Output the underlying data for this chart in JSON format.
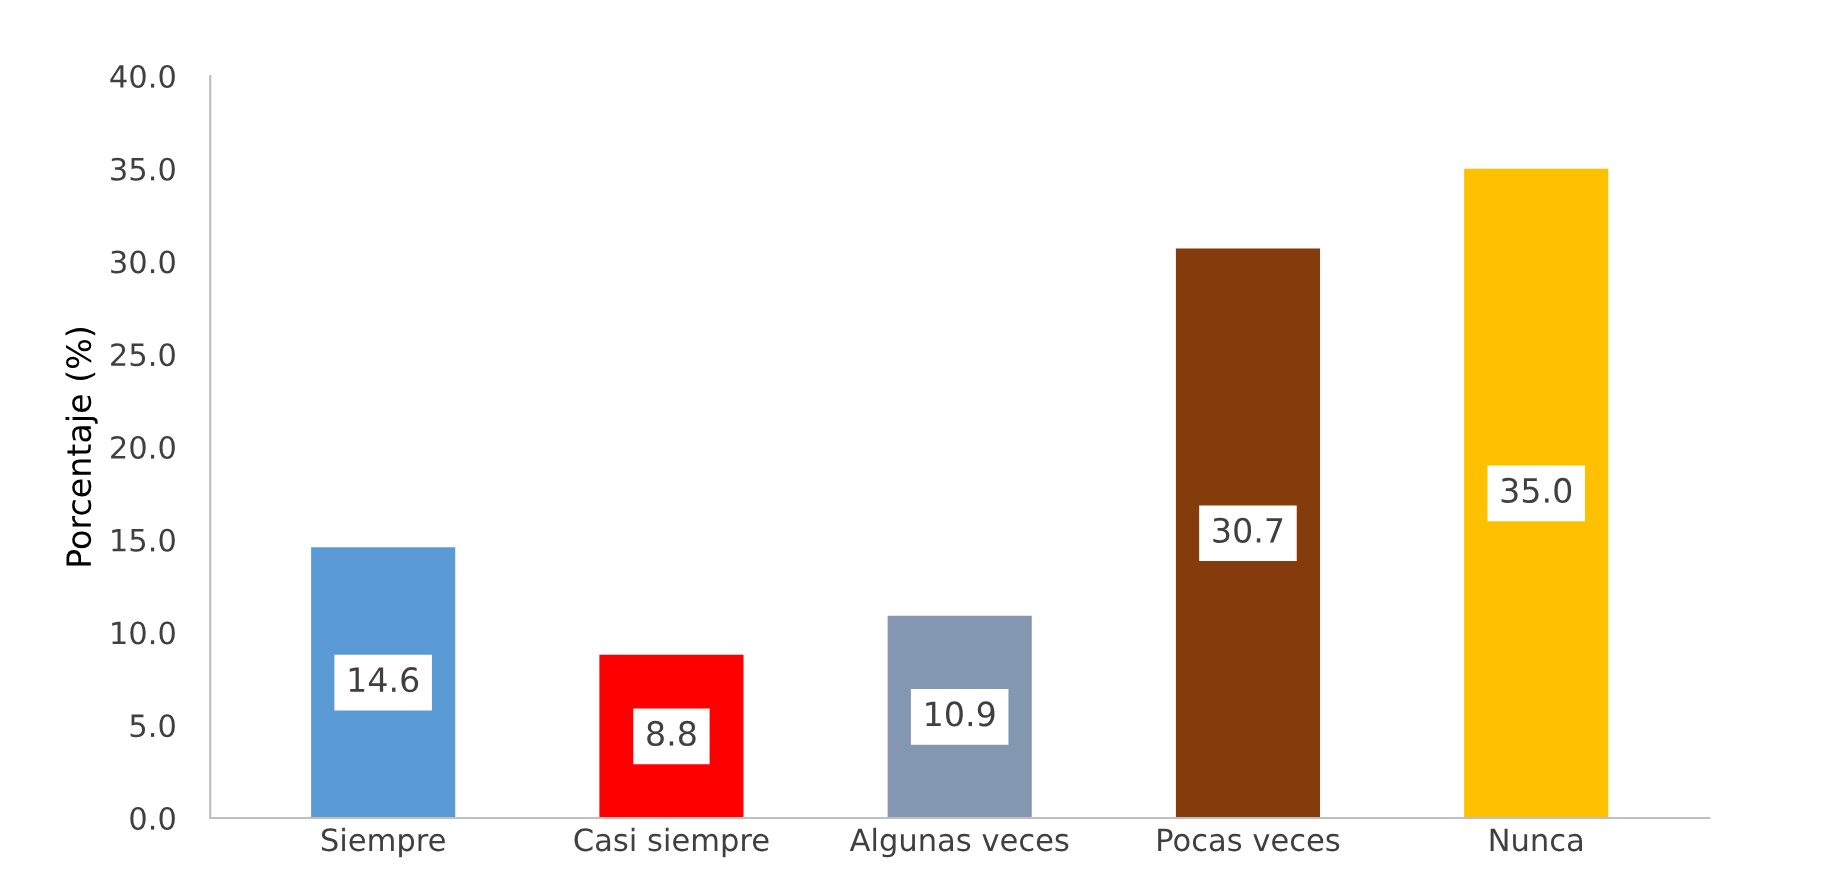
{
  "chart_data": {
    "type": "bar",
    "ylabel": "Porcentaje (%)",
    "categories": [
      "Siempre",
      "Casi siempre",
      "Algunas veces",
      "Pocas veces",
      "Nunca"
    ],
    "values": [
      14.6,
      8.8,
      10.9,
      30.7,
      35.0
    ],
    "colors": [
      "#5b9bd5",
      "#ff0000",
      "#8497b0",
      "#843c0c",
      "#ffc000"
    ],
    "value_labels": [
      "14.6",
      "8.8",
      "10.9",
      "30.7",
      "35.0"
    ],
    "ylim": [
      0,
      40
    ],
    "yticks": [
      {
        "value": 0,
        "label": "0.0"
      },
      {
        "value": 5,
        "label": "5.0"
      },
      {
        "value": 10,
        "label": "10.0"
      },
      {
        "value": 15,
        "label": "15.0"
      },
      {
        "value": 20,
        "label": "20.0"
      },
      {
        "value": 25,
        "label": "25.0"
      },
      {
        "value": 30,
        "label": "30.0"
      },
      {
        "value": 35,
        "label": "35.0"
      },
      {
        "value": 40,
        "label": "40.0"
      }
    ],
    "grid": false,
    "legend": false
  }
}
